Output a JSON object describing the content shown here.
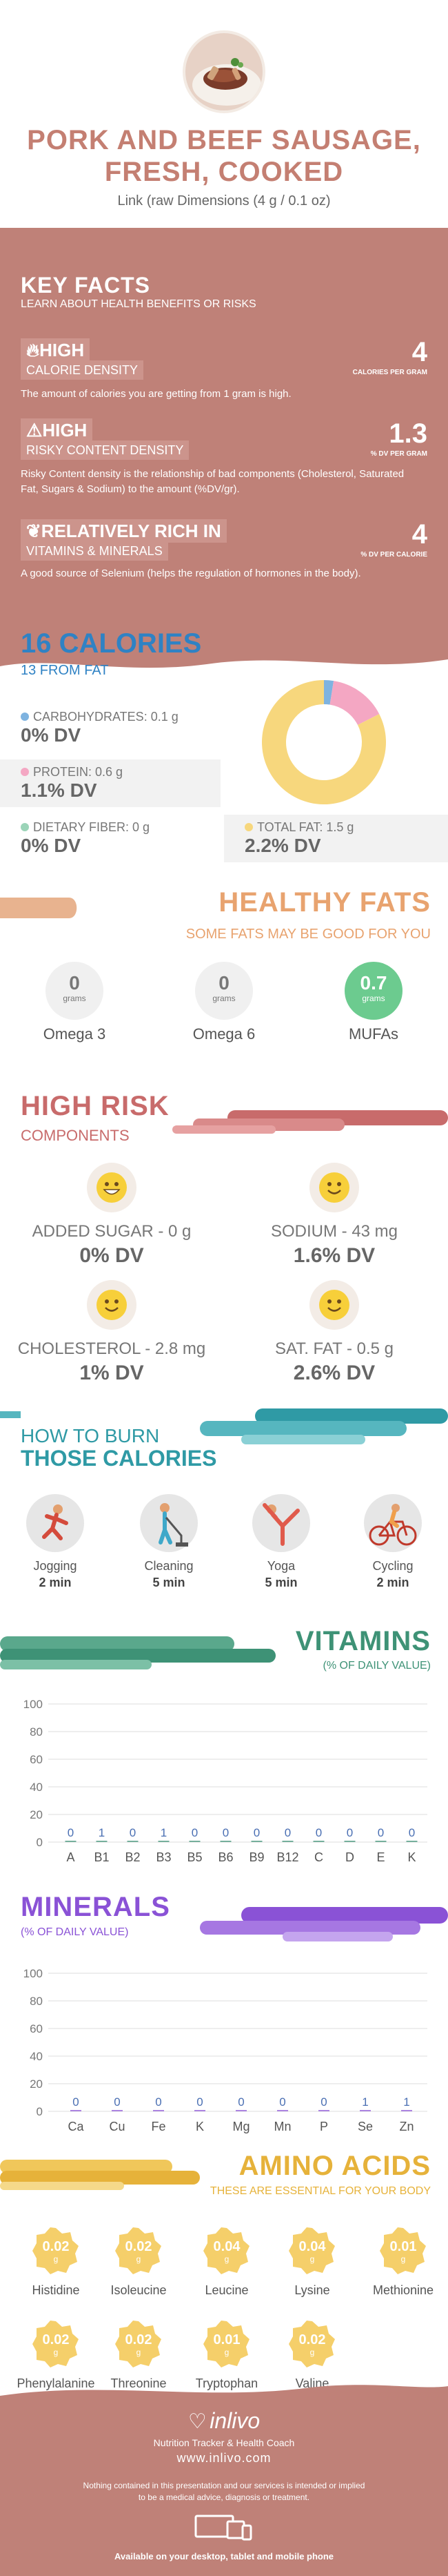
{
  "header": {
    "title_line1": "PORK AND BEEF SAUSAGE,",
    "title_line2": "FRESH, COOKED",
    "subtitle": "Link (raw Dimensions (4 g / 0.1 oz)"
  },
  "key_facts": {
    "title": "KEY FACTS",
    "subtitle": "LEARN ABOUT HEALTH BENEFITS OR RISKS",
    "facts": [
      {
        "level": "HIGH",
        "label": "CALORIE DENSITY",
        "value": "4",
        "unit": "CALORIES PER GRAM",
        "desc": "The amount of calories you are getting from 1 gram is high."
      },
      {
        "level": "HIGH",
        "label": "RISKY CONTENT DENSITY",
        "value": "1.3",
        "unit": "% DV PER GRAM",
        "desc": "Risky Content density is the relationship of bad components (Cholesterol, Saturated Fat, Sugars & Sodium) to the amount (%DV/gr)."
      },
      {
        "level": "RELATIVELY RICH  IN",
        "label": "VITAMINS & MINERALS",
        "value": "4",
        "unit": "% DV PER CALORIE",
        "desc": "A good source of Selenium (helps the regulation of hormones in the body)."
      }
    ]
  },
  "calories": {
    "title": "16 CALORIES",
    "from_fat": "13 FROM FAT",
    "carbs_label": "CARBOHYDRATES: 0.1 g",
    "carbs_dv": "0% DV",
    "protein_label": "PROTEIN: 0.6 g",
    "protein_dv": "1.1% DV",
    "fiber_label": "DIETARY FIBER: 0 g",
    "fiber_dv": "0% DV",
    "fat_label": "TOTAL FAT: 1.5 g",
    "fat_dv": "2.2% DV",
    "colors": {
      "carbs": "#7eb3e0",
      "protein": "#f4a7c3",
      "fiber": "#9bd4b8",
      "fat": "#f7d77d"
    }
  },
  "chart_data": {
    "type": "pie",
    "categories": [
      "Carbohydrates",
      "Protein",
      "Total Fat"
    ],
    "values": [
      2.5,
      15,
      82.5
    ]
  },
  "healthy_fats": {
    "title": "HEALTHY FATS",
    "subtitle": "SOME FATS MAY BE GOOD FOR YOU",
    "items": [
      {
        "value": "0",
        "unit": "grams",
        "label": "Omega 3"
      },
      {
        "value": "0",
        "unit": "grams",
        "label": "Omega 6"
      },
      {
        "value": "0.7",
        "unit": "grams",
        "label": "MUFAs"
      }
    ]
  },
  "high_risk": {
    "title": "HIGH RISK",
    "subtitle": "COMPONENTS",
    "items": [
      {
        "label": "ADDED SUGAR - 0 g",
        "dv": "0% DV"
      },
      {
        "label": "SODIUM - 43 mg",
        "dv": "1.6% DV"
      },
      {
        "label": "CHOLESTEROL - 2.8 mg",
        "dv": "1% DV"
      },
      {
        "label": "SAT. FAT - 0.5 g",
        "dv": "2.6% DV"
      }
    ]
  },
  "burn": {
    "title_line1": "HOW TO BURN",
    "title_line2": "THOSE CALORIES",
    "items": [
      {
        "name": "Jogging",
        "time": "2 min"
      },
      {
        "name": "Cleaning",
        "time": "5 min"
      },
      {
        "name": "Yoga",
        "time": "5 min"
      },
      {
        "name": "Cycling",
        "time": "2 min"
      }
    ]
  },
  "vitamins": {
    "title": "VITAMINS",
    "subtitle": "(% OF DAILY VALUE)",
    "y_ticks": [
      "100",
      "80",
      "60",
      "40",
      "20",
      "0"
    ],
    "categories": [
      "A",
      "B1",
      "B2",
      "B3",
      "B5",
      "B6",
      "B9",
      "B12",
      "C",
      "D",
      "E",
      "K"
    ],
    "values": [
      "0",
      "1",
      "0",
      "1",
      "0",
      "0",
      "0",
      "0",
      "0",
      "0",
      "0",
      "0"
    ]
  },
  "minerals": {
    "title": "MINERALS",
    "subtitle": "(% OF DAILY VALUE)",
    "y_ticks": [
      "100",
      "80",
      "60",
      "40",
      "20",
      "0"
    ],
    "categories": [
      "Ca",
      "Cu",
      "Fe",
      "K",
      "Mg",
      "Mn",
      "P",
      "Se",
      "Zn"
    ],
    "values": [
      "0",
      "0",
      "0",
      "0",
      "0",
      "0",
      "0",
      "1",
      "1"
    ]
  },
  "amino": {
    "title": "AMINO ACIDS",
    "subtitle": "THESE ARE ESSENTIAL FOR YOUR BODY",
    "items": [
      {
        "value": "0.02",
        "unit": "g",
        "name": "Histidine"
      },
      {
        "value": "0.02",
        "unit": "g",
        "name": "Isoleucine"
      },
      {
        "value": "0.04",
        "unit": "g",
        "name": "Leucine"
      },
      {
        "value": "0.04",
        "unit": "g",
        "name": "Lysine"
      },
      {
        "value": "0.01",
        "unit": "g",
        "name": "Methionine"
      },
      {
        "value": "0.02",
        "unit": "g",
        "name": "Phenylalanine"
      },
      {
        "value": "0.02",
        "unit": "g",
        "name": "Threonine"
      },
      {
        "value": "0.01",
        "unit": "g",
        "name": "Tryptophan"
      },
      {
        "value": "0.02",
        "unit": "g",
        "name": "Valine"
      }
    ]
  },
  "footer": {
    "brand": "inlivo",
    "tagline": "Nutrition Tracker & Health Coach",
    "url": "www.inlivo.com",
    "disclaimer1": "Nothing contained in this presentation and our services is intended or implied",
    "disclaimer2": "to be a medical advice, diagnosis or treatment.",
    "available": "Available on your desktop, tablet and mobile phone"
  }
}
